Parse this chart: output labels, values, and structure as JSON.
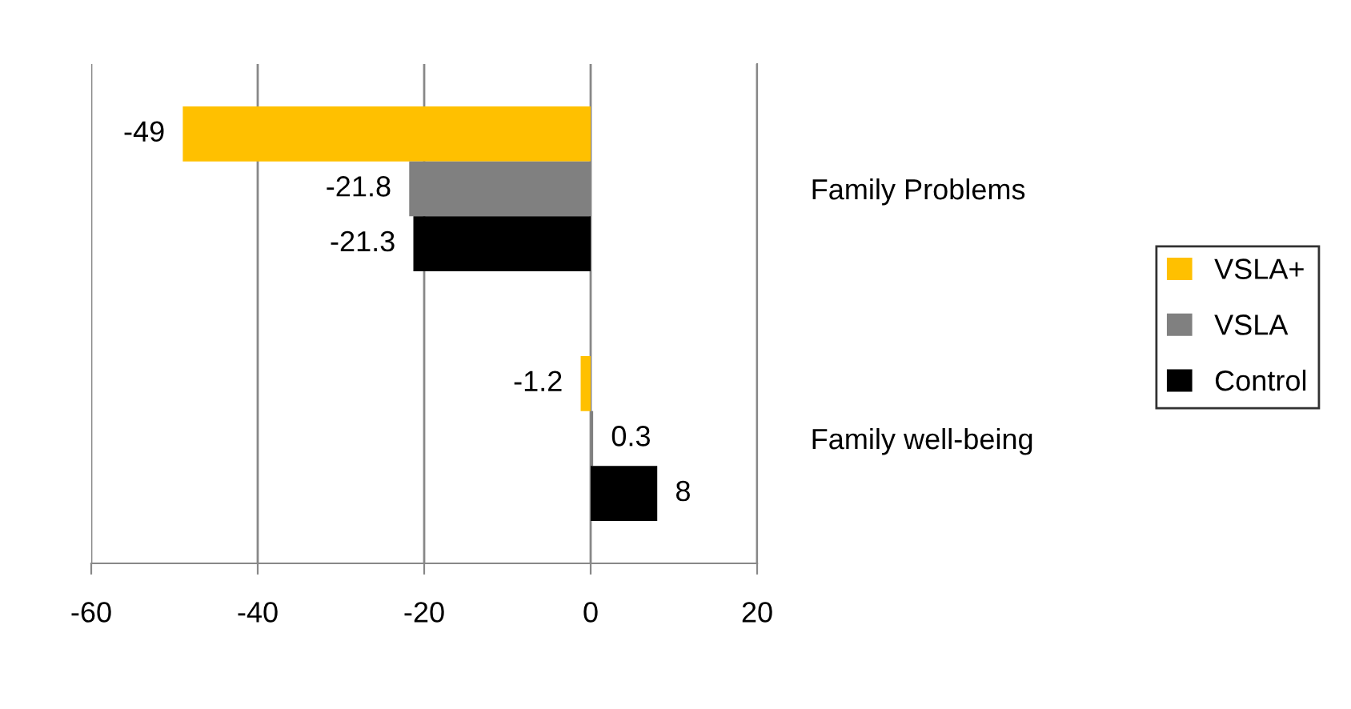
{
  "chart_data": {
    "type": "bar",
    "orientation": "horizontal",
    "categories": [
      "Family Problems",
      "Family well-being"
    ],
    "series": [
      {
        "name": "VSLA+",
        "color": "#ffc000",
        "values": [
          -49,
          -1.2
        ]
      },
      {
        "name": "VSLA",
        "color": "#808080",
        "values": [
          -21.8,
          0.3
        ]
      },
      {
        "name": "Control",
        "color": "#000000",
        "values": [
          -21.3,
          8
        ]
      }
    ],
    "xlim": [
      -60,
      20
    ],
    "xticks": [
      -60,
      -40,
      -20,
      0,
      20
    ],
    "grid": "x",
    "legend": "right",
    "data_labels": true
  }
}
